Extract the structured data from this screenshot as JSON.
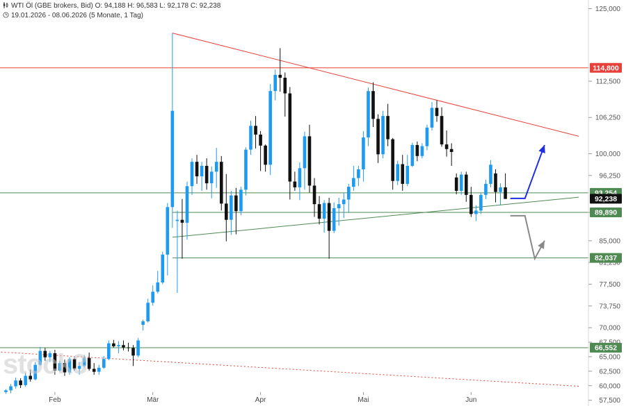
{
  "header": {
    "line1": "WTI Öl (GBE brokers, Bid)  O: 94,188  H: 96,583  L: 92,178  C: 92,238",
    "line2": "19.01.2026 - 08.06.2026  (5 Monate, 1 Tag)",
    "icon": "candlestick-icon",
    "clock_icon": "clock-icon"
  },
  "watermark": "stock3",
  "chart_data": {
    "type": "candlestick",
    "title": "WTI Öl (GBE brokers, Bid)",
    "ylim": [
      56500,
      126500
    ],
    "y_ticks": [
      {
        "value": 125000,
        "label": "125,000"
      },
      {
        "value": 112500,
        "label": "112,500"
      },
      {
        "value": 106250,
        "label": "106,250"
      },
      {
        "value": 100000,
        "label": "100,000"
      },
      {
        "value": 96250,
        "label": "96,250"
      },
      {
        "value": 89890,
        "label": "89,890"
      },
      {
        "value": 85000,
        "label": "85,000"
      },
      {
        "value": 81250,
        "label": "81,250"
      },
      {
        "value": 77500,
        "label": "77,500"
      },
      {
        "value": 73750,
        "label": "73,750"
      },
      {
        "value": 70000,
        "label": "70,000"
      },
      {
        "value": 67500,
        "label": "67,500"
      },
      {
        "value": 65000,
        "label": "65,000"
      },
      {
        "value": 62500,
        "label": "62,500"
      },
      {
        "value": 60000,
        "label": "60,000"
      },
      {
        "value": 57500,
        "label": "57,500"
      }
    ],
    "x_labels": [
      {
        "label": "Feb",
        "index": 10
      },
      {
        "label": "Mär",
        "index": 30
      },
      {
        "label": "Apr",
        "index": 52
      },
      {
        "label": "Mai",
        "index": 73
      },
      {
        "label": "Jun",
        "index": 95
      }
    ],
    "price_labels": [
      {
        "value": 114800,
        "label": "114,800",
        "color": "#e8403a"
      },
      {
        "value": 93254,
        "label": "93,254",
        "color": "#4e8a52"
      },
      {
        "value": 92238,
        "label": "92,238",
        "color": "#111111"
      },
      {
        "value": 89890,
        "label": "89,890",
        "color": "#4e8a52"
      },
      {
        "value": 82037,
        "label": "82,037",
        "color": "#4e8a52"
      },
      {
        "value": 66552,
        "label": "66,552",
        "color": "#4e8a52"
      }
    ],
    "candles": [
      [
        58.9,
        59.4,
        58.6,
        59.2
      ],
      [
        59.2,
        60.3,
        58.7,
        59.9
      ],
      [
        59.9,
        61.4,
        59.5,
        60.9
      ],
      [
        60.9,
        61.3,
        59.6,
        60.1
      ],
      [
        60.1,
        62.2,
        59.8,
        61.7
      ],
      [
        61.7,
        62.8,
        60.7,
        61.1
      ],
      [
        61.1,
        64.1,
        60.9,
        63.6
      ],
      [
        63.6,
        66.7,
        63.4,
        66.0
      ],
      [
        66.0,
        66.5,
        64.3,
        64.9
      ],
      [
        64.9,
        66.0,
        64.1,
        65.6
      ],
      [
        65.6,
        66.2,
        61.9,
        62.6
      ],
      [
        62.6,
        64.3,
        62.4,
        63.9
      ],
      [
        63.9,
        64.5,
        61.7,
        62.3
      ],
      [
        62.3,
        64.9,
        61.9,
        64.6
      ],
      [
        64.6,
        64.9,
        62.6,
        62.9
      ],
      [
        62.9,
        64.1,
        61.9,
        63.4
      ],
      [
        63.4,
        65.3,
        63.1,
        64.8
      ],
      [
        64.8,
        65.7,
        62.6,
        62.9
      ],
      [
        62.9,
        63.9,
        61.9,
        62.4
      ],
      [
        62.4,
        63.6,
        61.9,
        63.1
      ],
      [
        63.1,
        65.1,
        62.9,
        64.6
      ],
      [
        64.6,
        67.8,
        64.4,
        67.3
      ],
      [
        67.3,
        67.9,
        66.6,
        66.8
      ],
      [
        66.8,
        67.7,
        65.6,
        67.0
      ],
      [
        67.0,
        67.8,
        66.1,
        66.6
      ],
      [
        66.6,
        67.4,
        65.9,
        66.5
      ],
      [
        66.5,
        67.0,
        63.4,
        65.2
      ],
      [
        65.2,
        68.2,
        64.9,
        67.8
      ],
      [
        70.5,
        71.4,
        69.5,
        71.1
      ],
      [
        71.1,
        75.0,
        70.9,
        74.3
      ],
      [
        74.3,
        77.3,
        73.8,
        76.2
      ],
      [
        76.2,
        79.8,
        75.9,
        77.8
      ],
      [
        77.8,
        83.1,
        77.5,
        82.6
      ],
      [
        82.6,
        91.5,
        79.0,
        90.8
      ],
      [
        90.8,
        120.8,
        87.2,
        107.4
      ],
      [
        88.4,
        90.2,
        76.0,
        88.6
      ],
      [
        88.6,
        92.2,
        81.9,
        88.1
      ],
      [
        88.1,
        95.2,
        85.2,
        94.4
      ],
      [
        94.4,
        99.2,
        92.9,
        98.6
      ],
      [
        98.6,
        99.8,
        94.8,
        96.1
      ],
      [
        96.1,
        98.6,
        93.6,
        97.9
      ],
      [
        97.9,
        99.2,
        93.8,
        94.9
      ],
      [
        94.9,
        97.8,
        92.3,
        96.9
      ],
      [
        96.9,
        101.0,
        94.1,
        98.6
      ],
      [
        98.6,
        99.6,
        90.2,
        91.4
      ],
      [
        91.4,
        96.5,
        84.9,
        88.6
      ],
      [
        88.6,
        93.6,
        86.0,
        92.8
      ],
      [
        92.8,
        94.1,
        86.1,
        90.1
      ],
      [
        90.1,
        94.3,
        89.4,
        93.8
      ],
      [
        93.8,
        101.1,
        92.8,
        100.7
      ],
      [
        100.7,
        105.7,
        99.8,
        104.8
      ],
      [
        104.8,
        106.5,
        100.9,
        103.3
      ],
      [
        103.3,
        103.9,
        97.0,
        101.4
      ],
      [
        101.4,
        101.6,
        96.9,
        98.1
      ],
      [
        98.1,
        112.0,
        96.3,
        110.8
      ],
      [
        110.8,
        114.5,
        109.2,
        113.6
      ],
      [
        113.6,
        118.2,
        110.7,
        113.1
      ],
      [
        113.1,
        114.0,
        106.4,
        110.4
      ],
      [
        110.4,
        111.5,
        92.1,
        95.2
      ],
      [
        95.2,
        96.9,
        93.6,
        94.2
      ],
      [
        94.2,
        98.5,
        92.0,
        97.5
      ],
      [
        97.5,
        103.8,
        93.8,
        103.0
      ],
      [
        103.0,
        105.0,
        93.3,
        94.5
      ],
      [
        94.5,
        95.8,
        89.1,
        91.3
      ],
      [
        91.3,
        92.7,
        87.8,
        88.8
      ],
      [
        88.8,
        92.0,
        86.4,
        91.5
      ],
      [
        91.5,
        92.4,
        81.9,
        86.7
      ],
      [
        86.7,
        91.6,
        86.3,
        90.6
      ],
      [
        90.6,
        92.4,
        87.6,
        91.3
      ],
      [
        91.3,
        93.2,
        88.9,
        92.1
      ],
      [
        92.1,
        94.8,
        89.8,
        94.3
      ],
      [
        94.3,
        97.9,
        93.6,
        95.8
      ],
      [
        95.8,
        97.9,
        94.4,
        97.3
      ],
      [
        97.3,
        103.9,
        95.2,
        102.8
      ],
      [
        102.8,
        111.4,
        101.3,
        110.8
      ],
      [
        110.8,
        112.3,
        104.6,
        106.0
      ],
      [
        106.0,
        106.8,
        98.4,
        99.9
      ],
      [
        99.9,
        107.4,
        99.2,
        106.5
      ],
      [
        106.5,
        108.6,
        101.3,
        102.5
      ],
      [
        102.5,
        102.7,
        93.8,
        95.3
      ],
      [
        95.3,
        98.8,
        94.6,
        98.2
      ],
      [
        98.2,
        99.8,
        93.6,
        94.8
      ],
      [
        94.8,
        99.8,
        94.4,
        97.9
      ],
      [
        97.9,
        101.9,
        97.7,
        101.5
      ],
      [
        101.5,
        102.1,
        98.7,
        99.6
      ],
      [
        99.6,
        101.8,
        99.2,
        101.3
      ],
      [
        101.3,
        105.0,
        100.6,
        104.5
      ],
      [
        104.5,
        108.9,
        104.0,
        107.9
      ],
      [
        107.9,
        109.2,
        105.5,
        106.5
      ],
      [
        106.5,
        108.0,
        101.2,
        101.6
      ],
      [
        101.6,
        104.0,
        99.5,
        100.8
      ],
      [
        100.8,
        101.8,
        97.9,
        100.3
      ],
      [
        95.9,
        96.6,
        93.0,
        93.6
      ],
      [
        93.6,
        96.9,
        92.9,
        96.4
      ],
      [
        96.4,
        96.9,
        91.7,
        92.9
      ],
      [
        92.9,
        94.3,
        89.1,
        89.6
      ],
      [
        89.6,
        91.1,
        88.4,
        90.2
      ],
      [
        90.2,
        93.2,
        89.6,
        92.9
      ],
      [
        92.9,
        95.5,
        92.2,
        94.8
      ],
      [
        94.8,
        98.9,
        94.2,
        98.1
      ],
      [
        96.6,
        97.3,
        91.6,
        93.4
      ],
      [
        93.4,
        94.9,
        91.1,
        94.2
      ],
      [
        94.2,
        96.6,
        92.2,
        92.2
      ]
    ],
    "trendlines": [
      {
        "name": "",
        "color": "#e8403a",
        "style": "solid",
        "from": {
          "i": 34,
          "v": 120.8
        },
        "to": {
          "i": 117,
          "v": 103.0
        }
      },
      {
        "name": "",
        "color": "#4e8a52",
        "style": "solid",
        "from": {
          "i": 34,
          "v": 85.6
        },
        "to": {
          "i": 117,
          "v": 92.5
        }
      },
      {
        "name": "",
        "color": "#e8403a",
        "style": "dotted",
        "from": {
          "i": -1,
          "v": 65.8
        },
        "to": {
          "i": 117,
          "v": 59.9
        }
      }
    ],
    "horizontal_lines": [
      {
        "value": 114.8,
        "color": "#e8403a",
        "from_i": -1
      },
      {
        "value": 93.254,
        "color": "#4e8a52",
        "from_i": -1
      },
      {
        "value": 89.89,
        "color": "#4e8a52",
        "from_i": 34
      },
      {
        "value": 82.037,
        "color": "#4e8a52",
        "from_i": 34
      },
      {
        "value": 66.552,
        "color": "#4e8a52",
        "from_i": -1
      }
    ],
    "scenario_arrows": [
      {
        "color": "#1f2ee0",
        "points": [
          {
            "i": 103,
            "v": 92.3
          },
          {
            "i": 106,
            "v": 92.3
          },
          {
            "i": 110,
            "v": 101.5
          }
        ]
      },
      {
        "color": "#888888",
        "points": [
          {
            "i": 103,
            "v": 89.3
          },
          {
            "i": 106,
            "v": 89.3
          },
          {
            "i": 108,
            "v": 81.9
          },
          {
            "i": 110,
            "v": 85.0
          }
        ]
      }
    ],
    "grid": false,
    "up_color": "#1e9bf0",
    "down_color": "#111111"
  }
}
